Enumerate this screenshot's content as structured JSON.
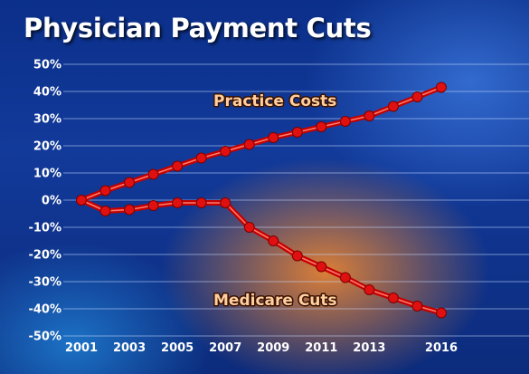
{
  "chart_data": {
    "type": "line",
    "title": "Physician Payment Cuts",
    "xlabel": "",
    "ylabel": "",
    "x_tick_labels": [
      "2001",
      "2003",
      "2005",
      "2007",
      "2009",
      "2011",
      "2013",
      "2016"
    ],
    "x_tick_values": [
      2001,
      2003,
      2005,
      2007,
      2009,
      2011,
      2013,
      2016
    ],
    "xlim": [
      2001,
      2016
    ],
    "y_tick_labels": [
      "50%",
      "40%",
      "30%",
      "20%",
      "10%",
      "0%",
      "-10%",
      "-20%",
      "-30%",
      "-40%",
      "-50%"
    ],
    "y_tick_values": [
      50,
      40,
      30,
      20,
      10,
      0,
      -10,
      -20,
      -30,
      -40,
      -50
    ],
    "ylim": [
      -50,
      50
    ],
    "grid": true,
    "colors": {
      "line": "#c40000",
      "line_highlight": "#ff7a6a",
      "marker": "#e01010",
      "label": "#ffcfa0"
    },
    "series": [
      {
        "name": "Practice Costs",
        "x": [
          2001,
          2002,
          2003,
          2004,
          2005,
          2006,
          2007,
          2008,
          2009,
          2010,
          2011,
          2012,
          2013,
          2014,
          2015,
          2016
        ],
        "y": [
          0,
          3.5,
          6.5,
          9.5,
          12.5,
          15.5,
          18,
          20.5,
          23,
          25,
          27,
          29,
          31,
          34.5,
          38,
          41.5
        ]
      },
      {
        "name": "Medicare Cuts",
        "x": [
          2001,
          2002,
          2003,
          2004,
          2005,
          2006,
          2007,
          2008,
          2009,
          2010,
          2011,
          2012,
          2013,
          2014,
          2015,
          2016
        ],
        "y": [
          0,
          -4,
          -3.5,
          -2,
          -1,
          -1,
          -1,
          -10,
          -15,
          -20.5,
          -24.5,
          -28.5,
          -33,
          -36,
          -39,
          -41.5
        ]
      }
    ]
  }
}
